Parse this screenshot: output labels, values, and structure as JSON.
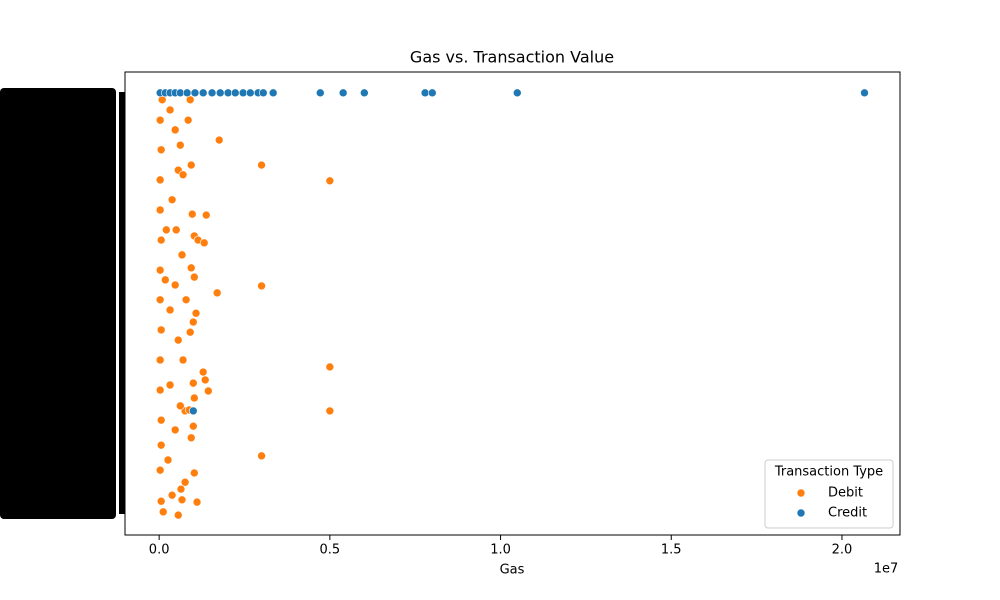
{
  "chart_data": {
    "type": "scatter",
    "title": "Gas vs. Transaction Value",
    "x_label": "Gas",
    "x_offset_label": "1e7",
    "xlim": [
      -1000000,
      21700000
    ],
    "xticks": [
      {
        "value": 0,
        "label": "0.0"
      },
      {
        "value": 5000000,
        "label": "0.5"
      },
      {
        "value": 10000000,
        "label": "1.0"
      },
      {
        "value": 15000000,
        "label": "1.5"
      },
      {
        "value": 20000000,
        "label": "2.0"
      }
    ],
    "ylim": [
      0,
      100
    ],
    "legend_title": "Transaction Type",
    "legend_loc": "lower right",
    "series": [
      {
        "name": "Debit",
        "color": "#ff7f0e",
        "x": [
          1760000,
          3000000,
          5000000,
          1380000,
          1030000,
          1140000,
          1320000,
          3000000,
          1700000,
          5000000,
          5000000,
          3000000,
          1290000,
          1350000,
          1440000,
          1000000,
          1030000,
          1000000,
          940000,
          1030000,
          1110000,
          970000,
          940000,
          940000,
          1030000,
          1080000,
          1000000,
          910000,
          760000,
          880000,
          620000,
          760000,
          640000,
          120000,
          60000,
          30000,
          60000,
          60000,
          30000,
          30000,
          60000,
          30000,
          30000,
          60000,
          30000,
          30000,
          60000,
          30000,
          90000,
          320000,
          470000,
          620000,
          560000,
          380000,
          500000,
          670000,
          470000,
          320000,
          560000,
          700000,
          320000,
          470000,
          260000,
          380000,
          560000,
          180000,
          210000,
          910000,
          850000,
          700000,
          790000,
          670000
        ],
        "y": [
          85.3,
          79.9,
          76.5,
          69.1,
          64.6,
          63.7,
          63.1,
          53.8,
          52.3,
          36.3,
          26.8,
          17.1,
          35.2,
          33.5,
          31.1,
          32.8,
          29.6,
          23.5,
          21.0,
          13.4,
          7.1,
          69.3,
          79.9,
          57.7,
          55.7,
          47.9,
          46.0,
          43.8,
          26.8,
          27.0,
          27.9,
          11.4,
          9.9,
          5.0,
          7.3,
          14.0,
          19.4,
          24.8,
          31.3,
          37.8,
          44.3,
          50.8,
          57.2,
          63.7,
          70.2,
          76.7,
          83.2,
          89.6,
          94.0,
          91.8,
          87.5,
          84.2,
          78.8,
          72.4,
          65.9,
          60.5,
          54.0,
          48.6,
          42.1,
          37.8,
          32.4,
          22.7,
          16.2,
          8.6,
          4.3,
          55.1,
          65.9,
          94.0,
          89.6,
          77.8,
          50.8,
          7.6
        ]
      },
      {
        "name": "Credit",
        "color": "#1f77b4",
        "x": [
          30000,
          180000,
          320000,
          470000,
          620000,
          820000,
          1050000,
          1290000,
          1550000,
          1790000,
          2020000,
          2230000,
          2460000,
          2670000,
          2900000,
          3050000,
          3340000,
          4720000,
          5390000,
          6010000,
          7790000,
          8000000,
          10490000,
          20660000,
          1000000
        ],
        "y": [
          95.5,
          95.5,
          95.5,
          95.5,
          95.5,
          95.5,
          95.5,
          95.5,
          95.5,
          95.5,
          95.5,
          95.5,
          95.5,
          95.5,
          95.5,
          95.5,
          95.5,
          95.5,
          95.5,
          95.5,
          95.5,
          95.5,
          95.5,
          95.5,
          26.8
        ]
      }
    ]
  }
}
